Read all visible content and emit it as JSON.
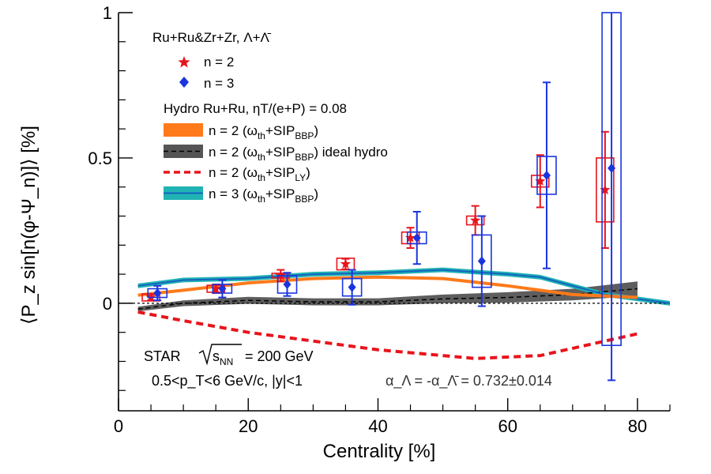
{
  "chart_data": {
    "type": "scatter",
    "title": "",
    "xlabel": "Centrality [%]",
    "ylabel": "⟨P_z sin[n(φ-Ψ_n)]⟩ [%]",
    "xlim": [
      0,
      85
    ],
    "ylim": [
      -0.37,
      1.0
    ],
    "x_ticks": [
      "0",
      "20",
      "40",
      "60",
      "80"
    ],
    "y_ticks": [
      "0",
      "0.5",
      "1"
    ],
    "legend": {
      "placement": "top-left",
      "data_header": "Ru+Ru&Zr+Zr, Λ+Λ̄",
      "hydro_header": "Hydro Ru+Ru, ηT/(e+P) = 0.08",
      "entries": [
        {
          "key": "n2_data",
          "label": "n = 2"
        },
        {
          "key": "n3_data",
          "label": "n = 3"
        },
        {
          "key": "hydro_n2_bbp",
          "label_main": "n = 2 (ω",
          "sub1": "th",
          "mid": "+SIP",
          "sub2": "BBP",
          "tail": ")"
        },
        {
          "key": "hydro_n2_ideal",
          "label_main": "n = 2 (ω",
          "sub1": "th",
          "mid": "+SIP",
          "sub2": "BBP",
          "tail": ") ideal hydro"
        },
        {
          "key": "hydro_n2_ly",
          "label_main": "n = 2 (ω",
          "sub1": "th",
          "mid": "+SIP",
          "sub2": "LY",
          "tail": ")"
        },
        {
          "key": "hydro_n3_bbp",
          "label_main": "n = 3 (ω",
          "sub1": "th",
          "mid": "+SIP",
          "sub2": "BBP",
          "tail": ")"
        }
      ]
    },
    "annotations": {
      "experiment": "STAR",
      "energy": "= 200 GeV",
      "sqrt_s_sub": "NN",
      "cuts": "0.5<p_T<6 GeV/c, |y|<1",
      "alpha": "α_Λ = -α_Λ̄ = 0.732±0.014"
    },
    "series": [
      {
        "name": "n = 2",
        "color": "#e8141c",
        "marker": "star",
        "points": [
          {
            "x": 5,
            "y": 0.02,
            "stat": 0.01,
            "sys": 0.012
          },
          {
            "x": 15,
            "y": 0.05,
            "stat": 0.015,
            "sys": 0.012
          },
          {
            "x": 25,
            "y": 0.095,
            "stat": 0.02,
            "sys": 0.008
          },
          {
            "x": 35,
            "y": 0.135,
            "stat": 0.018,
            "sys": 0.02
          },
          {
            "x": 45,
            "y": 0.225,
            "stat": 0.035,
            "sys": 0.02
          },
          {
            "x": 55,
            "y": 0.285,
            "stat": 0.05,
            "sys": 0.015
          },
          {
            "x": 65,
            "y": 0.42,
            "stat": 0.09,
            "sys": 0.02
          },
          {
            "x": 75,
            "y": 0.39,
            "stat": 0.2,
            "sys": 0.11
          }
        ]
      },
      {
        "name": "n = 3",
        "color": "#1a35e0",
        "marker": "diamond",
        "points": [
          {
            "x": 6,
            "y": 0.035,
            "stat": 0.025,
            "sys": 0.015
          },
          {
            "x": 16,
            "y": 0.05,
            "stat": 0.03,
            "sys": 0.015
          },
          {
            "x": 26,
            "y": 0.065,
            "stat": 0.04,
            "sys": 0.03
          },
          {
            "x": 36,
            "y": 0.055,
            "stat": 0.06,
            "sys": 0.03
          },
          {
            "x": 46,
            "y": 0.225,
            "stat": 0.09,
            "sys": 0.02
          },
          {
            "x": 56,
            "y": 0.145,
            "stat": 0.155,
            "sys": 0.09
          },
          {
            "x": 66,
            "y": 0.44,
            "stat": 0.32,
            "sys": 0.065
          },
          {
            "x": 76,
            "y": 0.465,
            "stat": 0.73,
            "sys": 0.61
          }
        ]
      }
    ],
    "hydro": {
      "n2_bbp": {
        "color": "#ff7a1a",
        "x": [
          3,
          10,
          20,
          30,
          40,
          50,
          60,
          70,
          80
        ],
        "y": [
          0.028,
          0.045,
          0.07,
          0.085,
          0.09,
          0.085,
          0.06,
          0.03,
          0.02
        ]
      },
      "n2_ideal": {
        "color": "#333333",
        "band_color": "#555555",
        "x": [
          3,
          10,
          20,
          30,
          40,
          50,
          60,
          70,
          80
        ],
        "y": [
          -0.02,
          0.0,
          0.01,
          0.005,
          0.005,
          0.015,
          0.02,
          0.03,
          0.05
        ],
        "width": [
          0.008,
          0.01,
          0.012,
          0.012,
          0.012,
          0.015,
          0.018,
          0.02,
          0.025
        ]
      },
      "n2_ly": {
        "color": "#e8141c",
        "x": [
          3,
          10,
          20,
          30,
          40,
          50,
          55,
          65,
          75,
          80
        ],
        "y": [
          -0.03,
          -0.06,
          -0.1,
          -0.13,
          -0.16,
          -0.18,
          -0.19,
          -0.18,
          -0.13,
          -0.105
        ]
      },
      "n3_bbp": {
        "color": "#1565c0",
        "band_color": "#21b3b3",
        "x": [
          3,
          10,
          20,
          30,
          40,
          50,
          60,
          65,
          75,
          80,
          85
        ],
        "y": [
          0.06,
          0.08,
          0.085,
          0.1,
          0.105,
          0.115,
          0.1,
          0.09,
          0.03,
          0.015,
          0.0
        ]
      }
    }
  }
}
